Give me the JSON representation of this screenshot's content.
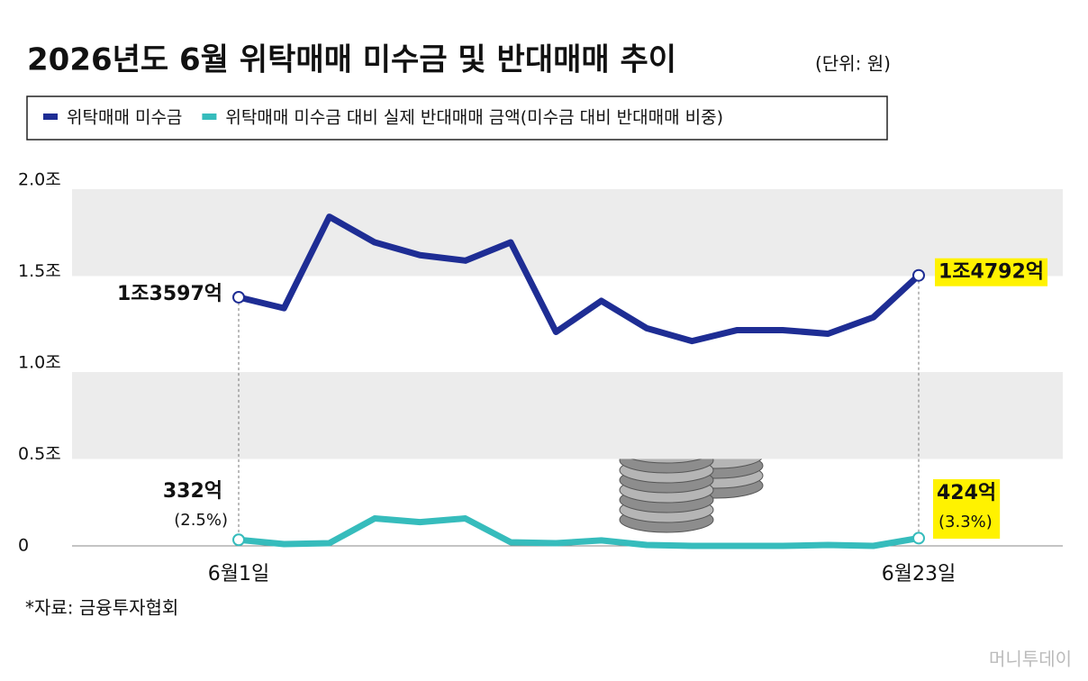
{
  "chart_data": {
    "type": "line",
    "title": "2026년도 6월 위탁매매 미수금 및 반대매매 추이",
    "unit": "(단위: 원)",
    "categories": [
      "6월1일",
      null,
      null,
      null,
      null,
      null,
      null,
      null,
      null,
      null,
      null,
      null,
      null,
      null,
      null,
      "6월23일"
    ],
    "series": [
      {
        "name": "위탁매매 미수금",
        "color": "#1e2d94",
        "values": [
          1.3597,
          1.3,
          1.8,
          1.66,
          1.59,
          1.56,
          1.66,
          1.17,
          1.34,
          1.19,
          1.12,
          1.18,
          1.18,
          1.16,
          1.25,
          1.4792
        ],
        "value_labels": [
          "1조3597억",
          null,
          null,
          null,
          null,
          null,
          null,
          null,
          null,
          null,
          null,
          null,
          null,
          null,
          null,
          "1조4792억"
        ]
      },
      {
        "name": "위탁매매 미수금 대비 실제 반대매매 금액(미수금 대비 반대매매 비중)",
        "color": "#36bcbc",
        "values": [
          0.0332,
          0.01,
          0.015,
          0.15,
          0.13,
          0.15,
          0.02,
          0.015,
          0.03,
          0.005,
          0.0,
          0.0,
          0.0,
          0.005,
          0.0,
          0.0424
        ],
        "value_labels": [
          "332억",
          null,
          null,
          null,
          null,
          null,
          null,
          null,
          null,
          null,
          null,
          null,
          null,
          null,
          null,
          "424억"
        ]
      }
    ],
    "annotations": [
      "(2.5%)",
      "(3.3%)"
    ],
    "ylim": [
      0,
      2.0
    ],
    "yticks": [
      0,
      {
        "value": 0.5,
        "label": "0.5조"
      },
      {
        "value": 1.0,
        "label": "1.0조"
      },
      {
        "value": 1.5,
        "label": "1.5조"
      },
      {
        "value": 2.0,
        "label": "2.0조"
      }
    ],
    "source": "*자료: 금융투자협회",
    "watermark": "머니투데이"
  }
}
